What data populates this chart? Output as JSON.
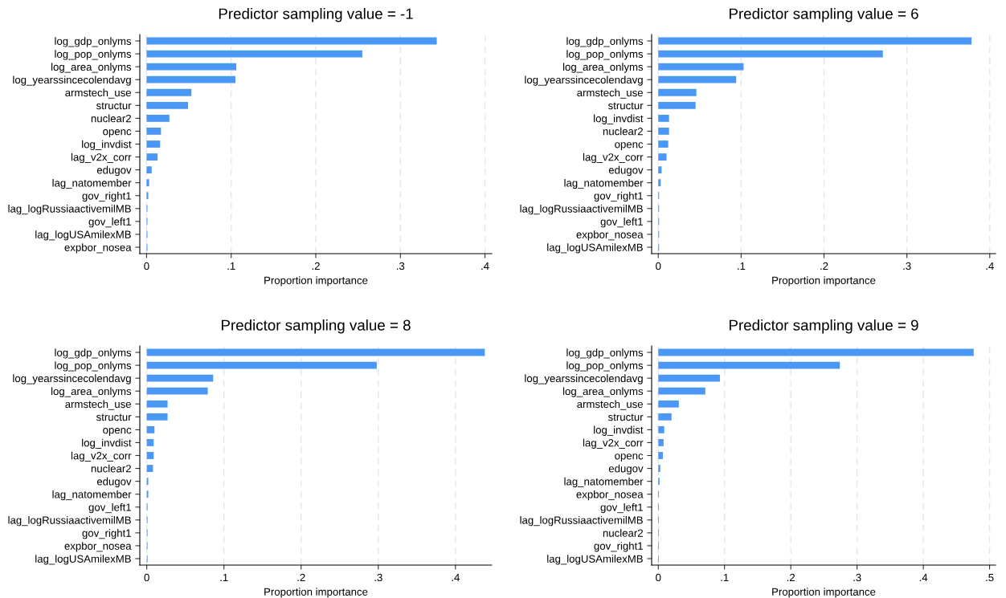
{
  "chart_data": [
    {
      "type": "bar",
      "orientation": "horizontal",
      "title": "Predictor sampling value = -1",
      "xlabel": "Proportion importance",
      "color": "#4a97f5",
      "grid": "x",
      "categories": [
        "log_gdp_onlyms",
        "log_pop_onlyms",
        "log_area_onlyms",
        "log_yearssincecolendavg",
        "armstech_use",
        "structur",
        "nuclear2",
        "openc",
        "log_invdist",
        "lag_v2x_corr",
        "edugov",
        "lag_natomember",
        "gov_right1",
        "lag_logRussiaactivemilMB",
        "gov_left1",
        "lag_logUSAmilexMB",
        "expbor_nosea"
      ],
      "values": [
        0.343,
        0.255,
        0.106,
        0.105,
        0.053,
        0.049,
        0.027,
        0.017,
        0.016,
        0.013,
        0.006,
        0.003,
        0.002,
        0.001,
        0.001,
        0.001,
        0.001
      ],
      "xlim": [
        -0.008,
        0.408
      ],
      "xticks": [
        {
          "value": 0,
          "label": "0"
        },
        {
          "value": 0.1,
          "label": ".1"
        },
        {
          "value": 0.2,
          "label": ".2"
        },
        {
          "value": 0.3,
          "label": ".3"
        },
        {
          "value": 0.4,
          "label": ".4"
        }
      ]
    },
    {
      "type": "bar",
      "orientation": "horizontal",
      "title": "Predictor sampling value = 6",
      "xlabel": "Proportion importance",
      "color": "#4a97f5",
      "grid": "x",
      "categories": [
        "log_gdp_onlyms",
        "log_pop_onlyms",
        "log_area_onlyms",
        "log_yearssincecolendavg",
        "armstech_use",
        "structur",
        "log_invdist",
        "nuclear2",
        "openc",
        "lag_v2x_corr",
        "edugov",
        "lag_natomember",
        "gov_right1",
        "lag_logRussiaactivemilMB",
        "gov_left1",
        "expbor_nosea",
        "lag_logUSAmilexMB"
      ],
      "values": [
        0.378,
        0.271,
        0.103,
        0.094,
        0.046,
        0.045,
        0.013,
        0.013,
        0.012,
        0.01,
        0.004,
        0.003,
        0.001,
        0.001,
        0.001,
        0.001,
        0.001
      ],
      "xlim": [
        -0.008,
        0.407
      ],
      "xticks": [
        {
          "value": 0,
          "label": "0"
        },
        {
          "value": 0.1,
          "label": ".1"
        },
        {
          "value": 0.2,
          "label": ".2"
        },
        {
          "value": 0.3,
          "label": ".3"
        },
        {
          "value": 0.4,
          "label": ".4"
        }
      ]
    },
    {
      "type": "bar",
      "orientation": "horizontal",
      "title": "Predictor sampling value = 8",
      "xlabel": "Proportion importance",
      "color": "#4a97f5",
      "grid": "x",
      "categories": [
        "log_gdp_onlyms",
        "log_pop_onlyms",
        "log_yearssincecolendavg",
        "log_area_onlyms",
        "armstech_use",
        "structur",
        "openc",
        "log_invdist",
        "lag_v2x_corr",
        "nuclear2",
        "edugov",
        "lag_natomember",
        "gov_left1",
        "lag_logRussiaactivemilMB",
        "gov_right1",
        "expbor_nosea",
        "lag_logUSAmilexMB"
      ],
      "values": [
        0.438,
        0.298,
        0.086,
        0.079,
        0.027,
        0.027,
        0.01,
        0.009,
        0.009,
        0.008,
        0.002,
        0.002,
        0.001,
        0.001,
        0.001,
        0.001,
        0.001
      ],
      "xlim": [
        -0.009,
        0.447
      ],
      "xticks": [
        {
          "value": 0,
          "label": "0"
        },
        {
          "value": 0.1,
          "label": ".1"
        },
        {
          "value": 0.2,
          "label": ".2"
        },
        {
          "value": 0.3,
          "label": ".3"
        },
        {
          "value": 0.4,
          "label": ".4"
        }
      ]
    },
    {
      "type": "bar",
      "orientation": "horizontal",
      "title": "Predictor sampling value = 9",
      "xlabel": "Proportion importance",
      "color": "#4a97f5",
      "grid": "x",
      "categories": [
        "log_gdp_onlyms",
        "log_pop_onlyms",
        "log_yearssincecolendavg",
        "log_area_onlyms",
        "armstech_use",
        "structur",
        "log_invdist",
        "lag_v2x_corr",
        "openc",
        "edugov",
        "lag_natomember",
        "expbor_nosea",
        "gov_left1",
        "lag_logRussiaactivemilMB",
        "nuclear2",
        "gov_right1",
        "lag_logUSAmilexMB"
      ],
      "values": [
        0.476,
        0.274,
        0.093,
        0.071,
        0.031,
        0.02,
        0.009,
        0.008,
        0.007,
        0.003,
        0.002,
        0.001,
        0.001,
        0.001,
        0.001,
        0.001,
        0.001
      ],
      "xlim": [
        -0.01,
        0.509
      ],
      "xticks": [
        {
          "value": 0,
          "label": "0"
        },
        {
          "value": 0.1,
          "label": ".1"
        },
        {
          "value": 0.2,
          "label": ".2"
        },
        {
          "value": 0.3,
          "label": ".3"
        },
        {
          "value": 0.4,
          "label": ".4"
        },
        {
          "value": 0.5,
          "label": ".5"
        }
      ]
    }
  ]
}
